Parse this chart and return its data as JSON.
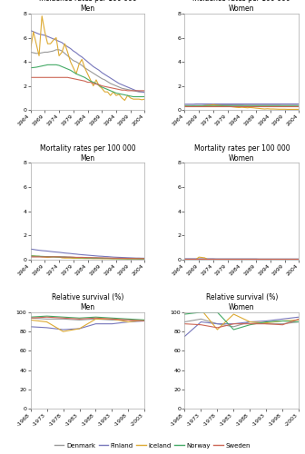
{
  "colors": {
    "Denmark": "#999999",
    "Finland": "#7777bb",
    "Iceland": "#ddaa33",
    "Norway": "#44aa66",
    "Sweden": "#cc6655"
  },
  "incidence_men_years": [
    1964,
    1965,
    1966,
    1967,
    1968,
    1969,
    1970,
    1971,
    1972,
    1973,
    1974,
    1975,
    1976,
    1977,
    1978,
    1979,
    1980,
    1981,
    1982,
    1983,
    1984,
    1985,
    1986,
    1987,
    1988,
    1989,
    1990,
    1991,
    1992,
    1993,
    1994,
    1995,
    1996,
    1997,
    1998,
    1999,
    2000,
    2001,
    2002,
    2003,
    2004
  ],
  "incidence_men": {
    "Denmark": [
      4.8,
      4.75,
      4.7,
      4.7,
      4.75,
      4.8,
      4.8,
      4.85,
      4.9,
      5.0,
      5.0,
      4.9,
      4.7,
      4.5,
      4.3,
      4.1,
      4.0,
      3.85,
      3.7,
      3.5,
      3.35,
      3.2,
      3.05,
      2.9,
      2.75,
      2.6,
      2.5,
      2.35,
      2.2,
      2.1,
      2.0,
      1.9,
      1.8,
      1.75,
      1.7,
      1.65,
      1.6,
      1.55,
      1.5,
      1.5,
      1.5
    ],
    "Finland": [
      6.6,
      6.5,
      6.4,
      6.3,
      6.25,
      6.2,
      6.1,
      6.0,
      5.9,
      5.8,
      5.7,
      5.6,
      5.4,
      5.25,
      5.1,
      4.9,
      4.75,
      4.55,
      4.4,
      4.2,
      4.0,
      3.8,
      3.6,
      3.45,
      3.3,
      3.1,
      2.95,
      2.8,
      2.65,
      2.5,
      2.35,
      2.2,
      2.1,
      2.0,
      1.9,
      1.8,
      1.7,
      1.6,
      1.55,
      1.5,
      1.45
    ],
    "Iceland": [
      5.0,
      6.5,
      5.5,
      4.5,
      7.8,
      6.5,
      5.5,
      5.5,
      5.8,
      6.0,
      4.5,
      4.8,
      5.5,
      4.8,
      4.0,
      3.5,
      3.0,
      3.8,
      4.2,
      3.5,
      3.0,
      2.5,
      2.0,
      2.5,
      2.0,
      1.8,
      1.5,
      1.5,
      1.2,
      1.5,
      1.2,
      1.3,
      1.0,
      0.8,
      1.2,
      1.0,
      0.9,
      0.9,
      0.9,
      0.85,
      0.9
    ],
    "Norway": [
      3.5,
      3.52,
      3.55,
      3.6,
      3.65,
      3.7,
      3.75,
      3.75,
      3.75,
      3.75,
      3.7,
      3.6,
      3.5,
      3.4,
      3.3,
      3.15,
      3.0,
      2.9,
      2.8,
      2.7,
      2.55,
      2.4,
      2.3,
      2.2,
      2.05,
      1.9,
      1.8,
      1.7,
      1.6,
      1.5,
      1.4,
      1.35,
      1.3,
      1.25,
      1.2,
      1.15,
      1.1,
      1.1,
      1.1,
      1.1,
      1.1
    ],
    "Sweden": [
      2.7,
      2.7,
      2.7,
      2.7,
      2.7,
      2.7,
      2.7,
      2.7,
      2.7,
      2.7,
      2.7,
      2.7,
      2.7,
      2.7,
      2.65,
      2.6,
      2.55,
      2.5,
      2.45,
      2.4,
      2.3,
      2.3,
      2.2,
      2.15,
      2.1,
      2.0,
      1.95,
      1.9,
      1.85,
      1.8,
      1.75,
      1.7,
      1.65,
      1.65,
      1.6,
      1.6,
      1.6,
      1.6,
      1.6,
      1.6,
      1.6
    ]
  },
  "incidence_women_years": [
    1964,
    1965,
    1966,
    1967,
    1968,
    1969,
    1970,
    1971,
    1972,
    1973,
    1974,
    1975,
    1976,
    1977,
    1978,
    1979,
    1980,
    1981,
    1982,
    1983,
    1984,
    1985,
    1986,
    1987,
    1988,
    1989,
    1990,
    1991,
    1992,
    1993,
    1994,
    1995,
    1996,
    1997,
    1998,
    1999,
    2000,
    2001,
    2002,
    2003,
    2004
  ],
  "incidence_women": {
    "Denmark": [
      0.38,
      0.38,
      0.38,
      0.38,
      0.38,
      0.38,
      0.38,
      0.4,
      0.4,
      0.4,
      0.42,
      0.42,
      0.42,
      0.42,
      0.42,
      0.42,
      0.42,
      0.43,
      0.43,
      0.43,
      0.43,
      0.44,
      0.44,
      0.44,
      0.44,
      0.44,
      0.44,
      0.44,
      0.44,
      0.44,
      0.44,
      0.44,
      0.44,
      0.44,
      0.45,
      0.45,
      0.45,
      0.45,
      0.45,
      0.45,
      0.46
    ],
    "Finland": [
      0.48,
      0.48,
      0.48,
      0.48,
      0.5,
      0.5,
      0.5,
      0.5,
      0.5,
      0.5,
      0.5,
      0.5,
      0.5,
      0.5,
      0.5,
      0.5,
      0.5,
      0.5,
      0.5,
      0.5,
      0.5,
      0.5,
      0.5,
      0.5,
      0.5,
      0.5,
      0.5,
      0.5,
      0.5,
      0.5,
      0.5,
      0.5,
      0.5,
      0.5,
      0.5,
      0.5,
      0.5,
      0.5,
      0.5,
      0.5,
      0.5
    ],
    "Iceland": [
      0.35,
      0.3,
      0.28,
      0.28,
      0.28,
      0.32,
      0.3,
      0.35,
      0.38,
      0.4,
      0.45,
      0.4,
      0.38,
      0.35,
      0.32,
      0.3,
      0.28,
      0.25,
      0.22,
      0.2,
      0.22,
      0.2,
      0.18,
      0.2,
      0.18,
      0.15,
      0.13,
      0.1,
      0.08,
      0.1,
      0.08,
      0.08,
      0.07,
      0.06,
      0.06,
      0.06,
      0.05,
      0.05,
      0.05,
      0.05,
      0.05
    ],
    "Norway": [
      0.32,
      0.32,
      0.32,
      0.33,
      0.33,
      0.33,
      0.33,
      0.33,
      0.33,
      0.33,
      0.33,
      0.33,
      0.33,
      0.33,
      0.33,
      0.33,
      0.33,
      0.33,
      0.33,
      0.33,
      0.33,
      0.33,
      0.33,
      0.33,
      0.33,
      0.33,
      0.33,
      0.33,
      0.33,
      0.33,
      0.33,
      0.33,
      0.33,
      0.33,
      0.33,
      0.33,
      0.33,
      0.33,
      0.33,
      0.33,
      0.33
    ],
    "Sweden": [
      0.33,
      0.33,
      0.33,
      0.33,
      0.33,
      0.33,
      0.33,
      0.33,
      0.33,
      0.33,
      0.33,
      0.33,
      0.33,
      0.33,
      0.33,
      0.33,
      0.33,
      0.33,
      0.33,
      0.33,
      0.33,
      0.33,
      0.33,
      0.33,
      0.33,
      0.33,
      0.33,
      0.33,
      0.33,
      0.33,
      0.33,
      0.33,
      0.33,
      0.33,
      0.33,
      0.33,
      0.33,
      0.33,
      0.33,
      0.33,
      0.33
    ]
  },
  "mortality_men_years": [
    1964,
    1965,
    1966,
    1967,
    1968,
    1969,
    1970,
    1971,
    1972,
    1973,
    1974,
    1975,
    1976,
    1977,
    1978,
    1979,
    1980,
    1981,
    1982,
    1983,
    1984,
    1985,
    1986,
    1987,
    1988,
    1989,
    1990,
    1991,
    1992,
    1993,
    1994,
    1995,
    1996,
    1997,
    1998,
    1999,
    2000,
    2001,
    2002,
    2003,
    2004
  ],
  "mortality_men": {
    "Denmark": [
      0.22,
      0.22,
      0.22,
      0.22,
      0.22,
      0.22,
      0.22,
      0.22,
      0.22,
      0.22,
      0.22,
      0.2,
      0.2,
      0.18,
      0.18,
      0.15,
      0.15,
      0.14,
      0.13,
      0.13,
      0.12,
      0.11,
      0.1,
      0.1,
      0.1,
      0.09,
      0.09,
      0.08,
      0.08,
      0.07,
      0.07,
      0.06,
      0.06,
      0.06,
      0.05,
      0.05,
      0.05,
      0.05,
      0.04,
      0.04,
      0.04
    ],
    "Finland": [
      0.85,
      0.82,
      0.78,
      0.75,
      0.72,
      0.7,
      0.68,
      0.65,
      0.62,
      0.6,
      0.58,
      0.55,
      0.52,
      0.5,
      0.48,
      0.45,
      0.43,
      0.4,
      0.38,
      0.36,
      0.34,
      0.32,
      0.3,
      0.28,
      0.26,
      0.25,
      0.23,
      0.22,
      0.2,
      0.18,
      0.17,
      0.16,
      0.15,
      0.14,
      0.13,
      0.12,
      0.11,
      0.1,
      0.1,
      0.09,
      0.09
    ],
    "Iceland": [
      0.3,
      0.28,
      0.25,
      0.25,
      0.2,
      0.18,
      0.15,
      0.18,
      0.22,
      0.2,
      0.18,
      0.12,
      0.1,
      0.1,
      0.1,
      0.08,
      0.08,
      0.08,
      0.08,
      0.07,
      0.07,
      0.07,
      0.06,
      0.06,
      0.06,
      0.05,
      0.05,
      0.05,
      0.05,
      0.04,
      0.04,
      0.04,
      0.04,
      0.03,
      0.03,
      0.03,
      0.03,
      0.03,
      0.03,
      0.03,
      0.03
    ],
    "Norway": [
      0.28,
      0.27,
      0.26,
      0.25,
      0.24,
      0.23,
      0.22,
      0.21,
      0.2,
      0.19,
      0.18,
      0.18,
      0.17,
      0.16,
      0.15,
      0.15,
      0.14,
      0.13,
      0.13,
      0.12,
      0.11,
      0.11,
      0.1,
      0.1,
      0.09,
      0.09,
      0.08,
      0.08,
      0.07,
      0.07,
      0.07,
      0.06,
      0.06,
      0.06,
      0.05,
      0.05,
      0.05,
      0.05,
      0.04,
      0.04,
      0.04
    ],
    "Sweden": [
      0.2,
      0.2,
      0.2,
      0.2,
      0.2,
      0.2,
      0.2,
      0.2,
      0.2,
      0.2,
      0.2,
      0.18,
      0.18,
      0.18,
      0.18,
      0.18,
      0.16,
      0.16,
      0.16,
      0.15,
      0.14,
      0.14,
      0.13,
      0.13,
      0.12,
      0.12,
      0.11,
      0.11,
      0.1,
      0.09,
      0.09,
      0.09,
      0.08,
      0.08,
      0.07,
      0.07,
      0.07,
      0.06,
      0.06,
      0.06,
      0.05
    ]
  },
  "mortality_women_years": [
    1964,
    1965,
    1966,
    1967,
    1968,
    1969,
    1970,
    1971,
    1972,
    1973,
    1974,
    1975,
    1976,
    1977,
    1978,
    1979,
    1980,
    1981,
    1982,
    1983,
    1984,
    1985,
    1986,
    1987,
    1988,
    1989,
    1990,
    1991,
    1992,
    1993,
    1994,
    1995,
    1996,
    1997,
    1998,
    1999,
    2000,
    2001,
    2002,
    2003,
    2004
  ],
  "mortality_women": {
    "Denmark": [
      0.02,
      0.02,
      0.02,
      0.02,
      0.02,
      0.02,
      0.02,
      0.02,
      0.02,
      0.02,
      0.02,
      0.02,
      0.02,
      0.02,
      0.02,
      0.02,
      0.02,
      0.02,
      0.02,
      0.02,
      0.02,
      0.02,
      0.02,
      0.02,
      0.02,
      0.02,
      0.02,
      0.02,
      0.02,
      0.02,
      0.02,
      0.02,
      0.02,
      0.02,
      0.02,
      0.02,
      0.02,
      0.02,
      0.02,
      0.02,
      0.02
    ],
    "Finland": [
      0.04,
      0.04,
      0.04,
      0.04,
      0.04,
      0.04,
      0.04,
      0.04,
      0.04,
      0.04,
      0.04,
      0.03,
      0.03,
      0.03,
      0.03,
      0.03,
      0.03,
      0.03,
      0.03,
      0.03,
      0.03,
      0.03,
      0.03,
      0.03,
      0.03,
      0.03,
      0.02,
      0.02,
      0.02,
      0.02,
      0.02,
      0.02,
      0.02,
      0.02,
      0.02,
      0.02,
      0.02,
      0.02,
      0.02,
      0.02,
      0.02
    ],
    "Iceland": [
      0.0,
      0.0,
      0.0,
      0.0,
      0.0,
      0.18,
      0.15,
      0.12,
      0.0,
      0.0,
      0.0,
      0.0,
      0.0,
      0.0,
      0.0,
      0.0,
      0.0,
      0.0,
      0.0,
      0.0,
      0.0,
      0.0,
      0.0,
      0.0,
      0.0,
      0.0,
      0.0,
      0.0,
      0.0,
      0.0,
      0.0,
      0.0,
      0.0,
      0.0,
      0.0,
      0.0,
      0.0,
      0.0,
      0.0,
      0.0,
      0.0
    ],
    "Norway": [
      0.02,
      0.02,
      0.02,
      0.02,
      0.02,
      0.02,
      0.02,
      0.02,
      0.02,
      0.02,
      0.02,
      0.02,
      0.02,
      0.02,
      0.02,
      0.02,
      0.02,
      0.02,
      0.02,
      0.02,
      0.02,
      0.02,
      0.02,
      0.02,
      0.02,
      0.02,
      0.02,
      0.02,
      0.02,
      0.02,
      0.02,
      0.02,
      0.02,
      0.02,
      0.02,
      0.02,
      0.02,
      0.02,
      0.02,
      0.02,
      0.02
    ],
    "Sweden": [
      0.02,
      0.02,
      0.02,
      0.02,
      0.02,
      0.02,
      0.02,
      0.02,
      0.02,
      0.02,
      0.02,
      0.02,
      0.02,
      0.02,
      0.02,
      0.02,
      0.02,
      0.02,
      0.02,
      0.02,
      0.02,
      0.02,
      0.02,
      0.02,
      0.02,
      0.02,
      0.02,
      0.02,
      0.02,
      0.02,
      0.02,
      0.02,
      0.02,
      0.02,
      0.02,
      0.02,
      0.02,
      0.02,
      0.02,
      0.02,
      0.02
    ]
  },
  "survival_x_labels": [
    "-1968",
    "-1973",
    "-1978",
    "-1983",
    "-1988",
    "-1993",
    "-1998",
    "-2003"
  ],
  "survival_men": {
    "Denmark": [
      94,
      93,
      93,
      92,
      93,
      92,
      92,
      91
    ],
    "Finland": [
      85,
      84,
      82,
      83,
      88,
      88,
      90,
      91
    ],
    "Iceland": [
      92,
      90,
      80,
      83,
      93,
      93,
      90,
      92
    ],
    "Norway": [
      95,
      96,
      95,
      94,
      95,
      94,
      93,
      92
    ],
    "Sweden": [
      94,
      95,
      94,
      93,
      94,
      93,
      92,
      91
    ]
  },
  "survival_women": {
    "Denmark": [
      90,
      93,
      88,
      85,
      90,
      88,
      88,
      90
    ],
    "Finland": [
      75,
      90,
      88,
      88,
      90,
      91,
      93,
      95
    ],
    "Iceland": [
      100,
      103,
      82,
      98,
      90,
      89,
      91,
      92
    ],
    "Norway": [
      98,
      100,
      100,
      82,
      87,
      90,
      91,
      90
    ],
    "Sweden": [
      88,
      87,
      84,
      88,
      88,
      88,
      87,
      93
    ]
  },
  "countries": [
    "Denmark",
    "Finland",
    "Iceland",
    "Norway",
    "Sweden"
  ],
  "bg_color": "#ffffff",
  "line_width": 0.8,
  "title_fontsize": 5.5,
  "tick_fontsize": 4.5
}
